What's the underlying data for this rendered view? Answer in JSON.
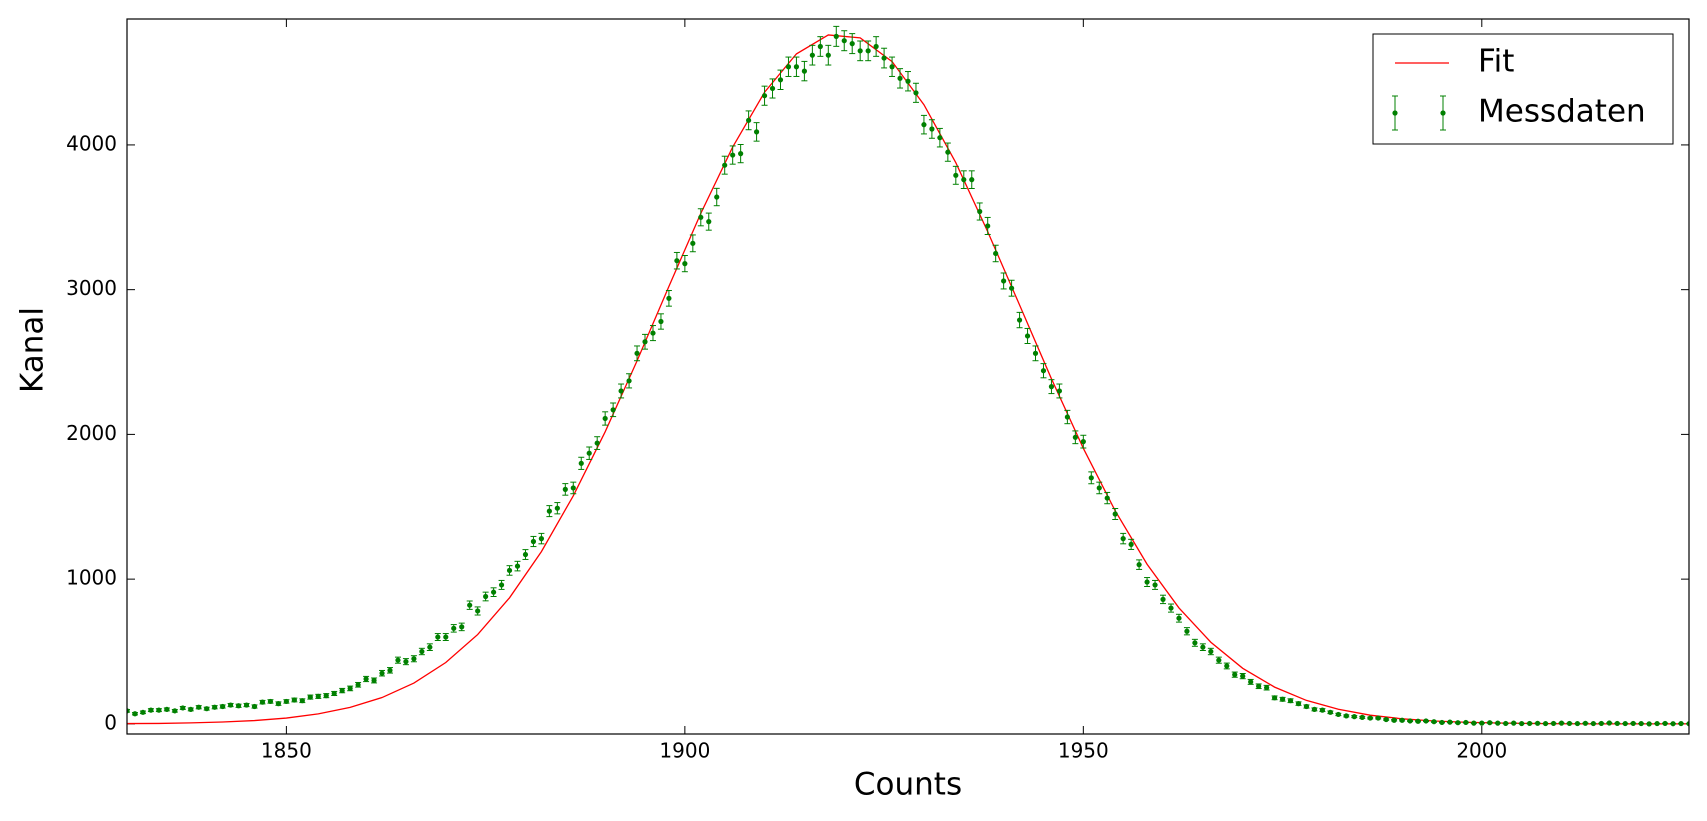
{
  "chart_data": {
    "type": "errorbar",
    "x_label": "Counts",
    "y_label": "Kanal",
    "xlim": [
      1830,
      2026
    ],
    "ylim": [
      -70,
      4870
    ],
    "xticks": [
      1850,
      1900,
      1950,
      2000
    ],
    "yticks": [
      0,
      1000,
      2000,
      3000,
      4000
    ],
    "grid": false,
    "legend": "upper right",
    "series": [
      {
        "name": "Fit",
        "color": "#ff0000",
        "kind": "line",
        "x": [
          1830,
          1834,
          1838,
          1842,
          1846,
          1850,
          1854,
          1858,
          1862,
          1866,
          1870,
          1874,
          1878,
          1882,
          1886,
          1890,
          1894,
          1898,
          1902,
          1906,
          1910,
          1914,
          1918,
          1922,
          1926,
          1930,
          1934,
          1938,
          1942,
          1946,
          1950,
          1954,
          1958,
          1962,
          1966,
          1970,
          1974,
          1978,
          1982,
          1986,
          1990,
          1994,
          1998,
          2002,
          2006,
          2010,
          2014,
          2018,
          2022,
          2026
        ],
        "values": [
          2,
          3,
          7,
          13,
          23,
          40,
          69,
          114,
          182,
          282,
          424,
          617,
          871,
          1190,
          1576,
          2018,
          2508,
          3023,
          3527,
          3985,
          4364,
          4629,
          4760,
          4740,
          4576,
          4278,
          3877,
          3401,
          2894,
          2384,
          1904,
          1472,
          1103,
          801,
          564,
          384,
          254,
          162,
          101,
          60,
          35,
          20,
          11,
          6,
          3,
          1,
          0,
          0,
          0,
          0
        ]
      },
      {
        "name": "Messdaten",
        "color": "#008000",
        "kind": "errorbar",
        "x": [
          1830,
          1831,
          1832,
          1833,
          1834,
          1835,
          1836,
          1837,
          1838,
          1839,
          1840,
          1841,
          1842,
          1843,
          1844,
          1845,
          1846,
          1847,
          1848,
          1849,
          1850,
          1851,
          1852,
          1853,
          1854,
          1855,
          1856,
          1857,
          1858,
          1859,
          1860,
          1861,
          1862,
          1863,
          1864,
          1865,
          1866,
          1867,
          1868,
          1869,
          1870,
          1871,
          1872,
          1873,
          1874,
          1875,
          1876,
          1877,
          1878,
          1879,
          1880,
          1881,
          1882,
          1883,
          1884,
          1885,
          1886,
          1887,
          1888,
          1889,
          1890,
          1891,
          1892,
          1893,
          1894,
          1895,
          1896,
          1897,
          1898,
          1899,
          1900,
          1901,
          1902,
          1903,
          1904,
          1905,
          1906,
          1907,
          1908,
          1909,
          1910,
          1911,
          1912,
          1913,
          1914,
          1915,
          1916,
          1917,
          1918,
          1919,
          1920,
          1921,
          1922,
          1923,
          1924,
          1925,
          1926,
          1927,
          1928,
          1929,
          1930,
          1931,
          1932,
          1933,
          1934,
          1935,
          1936,
          1937,
          1938,
          1939,
          1940,
          1941,
          1942,
          1943,
          1944,
          1945,
          1946,
          1947,
          1948,
          1949,
          1950,
          1951,
          1952,
          1953,
          1954,
          1955,
          1956,
          1957,
          1958,
          1959,
          1960,
          1961,
          1962,
          1963,
          1964,
          1965,
          1966,
          1967,
          1968,
          1969,
          1970,
          1971,
          1972,
          1973,
          1974,
          1975,
          1976,
          1977,
          1978,
          1979,
          1980,
          1981,
          1982,
          1983,
          1984,
          1985,
          1986,
          1987,
          1988,
          1989,
          1990,
          1991,
          1992,
          1993,
          1994,
          1995,
          1996,
          1997,
          1998,
          1999,
          2000,
          2001,
          2002,
          2003,
          2004,
          2005,
          2006,
          2007,
          2008,
          2009,
          2010,
          2011,
          2012,
          2013,
          2014,
          2015,
          2016,
          2017,
          2018,
          2019,
          2020,
          2021,
          2022,
          2023,
          2024,
          2025,
          2026
        ],
        "values": [
          90,
          70,
          80,
          95,
          95,
          100,
          90,
          110,
          100,
          115,
          105,
          115,
          120,
          130,
          125,
          130,
          120,
          150,
          155,
          140,
          155,
          165,
          160,
          185,
          190,
          195,
          210,
          230,
          245,
          270,
          310,
          300,
          350,
          370,
          440,
          430,
          450,
          500,
          530,
          600,
          600,
          660,
          670,
          820,
          780,
          880,
          910,
          960,
          1060,
          1090,
          1170,
          1260,
          1280,
          1470,
          1490,
          1620,
          1630,
          1800,
          1870,
          1940,
          2110,
          2170,
          2300,
          2370,
          2560,
          2640,
          2700,
          2780,
          2940,
          3200,
          3180,
          3320,
          3500,
          3470,
          3640,
          3860,
          3930,
          3940,
          4170,
          4090,
          4340,
          4390,
          4450,
          4540,
          4540,
          4510,
          4620,
          4680,
          4620,
          4750,
          4720,
          4700,
          4650,
          4650,
          4680,
          4600,
          4540,
          4460,
          4440,
          4360,
          4140,
          4110,
          4050,
          3950,
          3790,
          3760,
          3760,
          3540,
          3440,
          3250,
          3060,
          3010,
          2790,
          2680,
          2560,
          2440,
          2330,
          2300,
          2120,
          1980,
          1950,
          1700,
          1630,
          1560,
          1450,
          1280,
          1240,
          1100,
          980,
          960,
          860,
          800,
          730,
          640,
          560,
          530,
          500,
          440,
          400,
          340,
          330,
          290,
          260,
          250,
          180,
          170,
          160,
          140,
          120,
          100,
          95,
          80,
          65,
          55,
          50,
          45,
          40,
          40,
          30,
          25,
          25,
          20,
          18,
          20,
          15,
          10,
          12,
          8,
          10,
          5,
          5,
          8,
          5,
          3,
          5,
          2,
          3,
          4,
          2,
          3,
          5,
          3,
          2,
          4,
          2,
          3,
          6,
          3,
          2,
          3,
          2,
          0,
          2,
          3,
          1,
          2,
          1
        ],
        "errors": [
          9,
          8,
          9,
          10,
          10,
          10,
          9,
          10,
          10,
          11,
          10,
          11,
          11,
          11,
          11,
          11,
          11,
          12,
          12,
          12,
          12,
          13,
          13,
          14,
          14,
          14,
          14,
          15,
          16,
          16,
          18,
          17,
          19,
          19,
          21,
          21,
          21,
          22,
          23,
          24,
          24,
          26,
          26,
          29,
          28,
          30,
          30,
          31,
          33,
          33,
          34,
          35,
          36,
          38,
          39,
          40,
          40,
          42,
          43,
          44,
          46,
          47,
          48,
          49,
          51,
          51,
          52,
          53,
          54,
          57,
          56,
          58,
          59,
          59,
          60,
          62,
          63,
          63,
          65,
          64,
          66,
          66,
          67,
          67,
          67,
          67,
          68,
          68,
          68,
          69,
          69,
          69,
          68,
          68,
          68,
          68,
          67,
          67,
          67,
          66,
          64,
          64,
          64,
          63,
          62,
          61,
          61,
          59,
          59,
          57,
          55,
          55,
          53,
          52,
          51,
          49,
          48,
          48,
          46,
          44,
          44,
          41,
          40,
          39,
          38,
          36,
          35,
          33,
          31,
          31,
          29,
          28,
          27,
          25,
          24,
          23,
          22,
          21,
          20,
          18,
          18,
          17,
          16,
          16,
          13,
          13,
          13,
          12,
          11,
          10,
          10,
          9,
          8,
          7,
          7,
          7,
          6,
          6,
          5,
          5,
          5,
          4,
          4,
          4,
          4,
          3,
          3,
          3,
          3,
          2,
          2,
          3,
          2,
          2,
          2,
          1,
          2,
          2,
          1,
          2,
          2,
          2,
          1,
          2,
          1,
          2,
          2,
          2,
          1,
          2,
          1,
          0,
          1,
          2,
          1,
          1,
          1
        ]
      }
    ]
  }
}
